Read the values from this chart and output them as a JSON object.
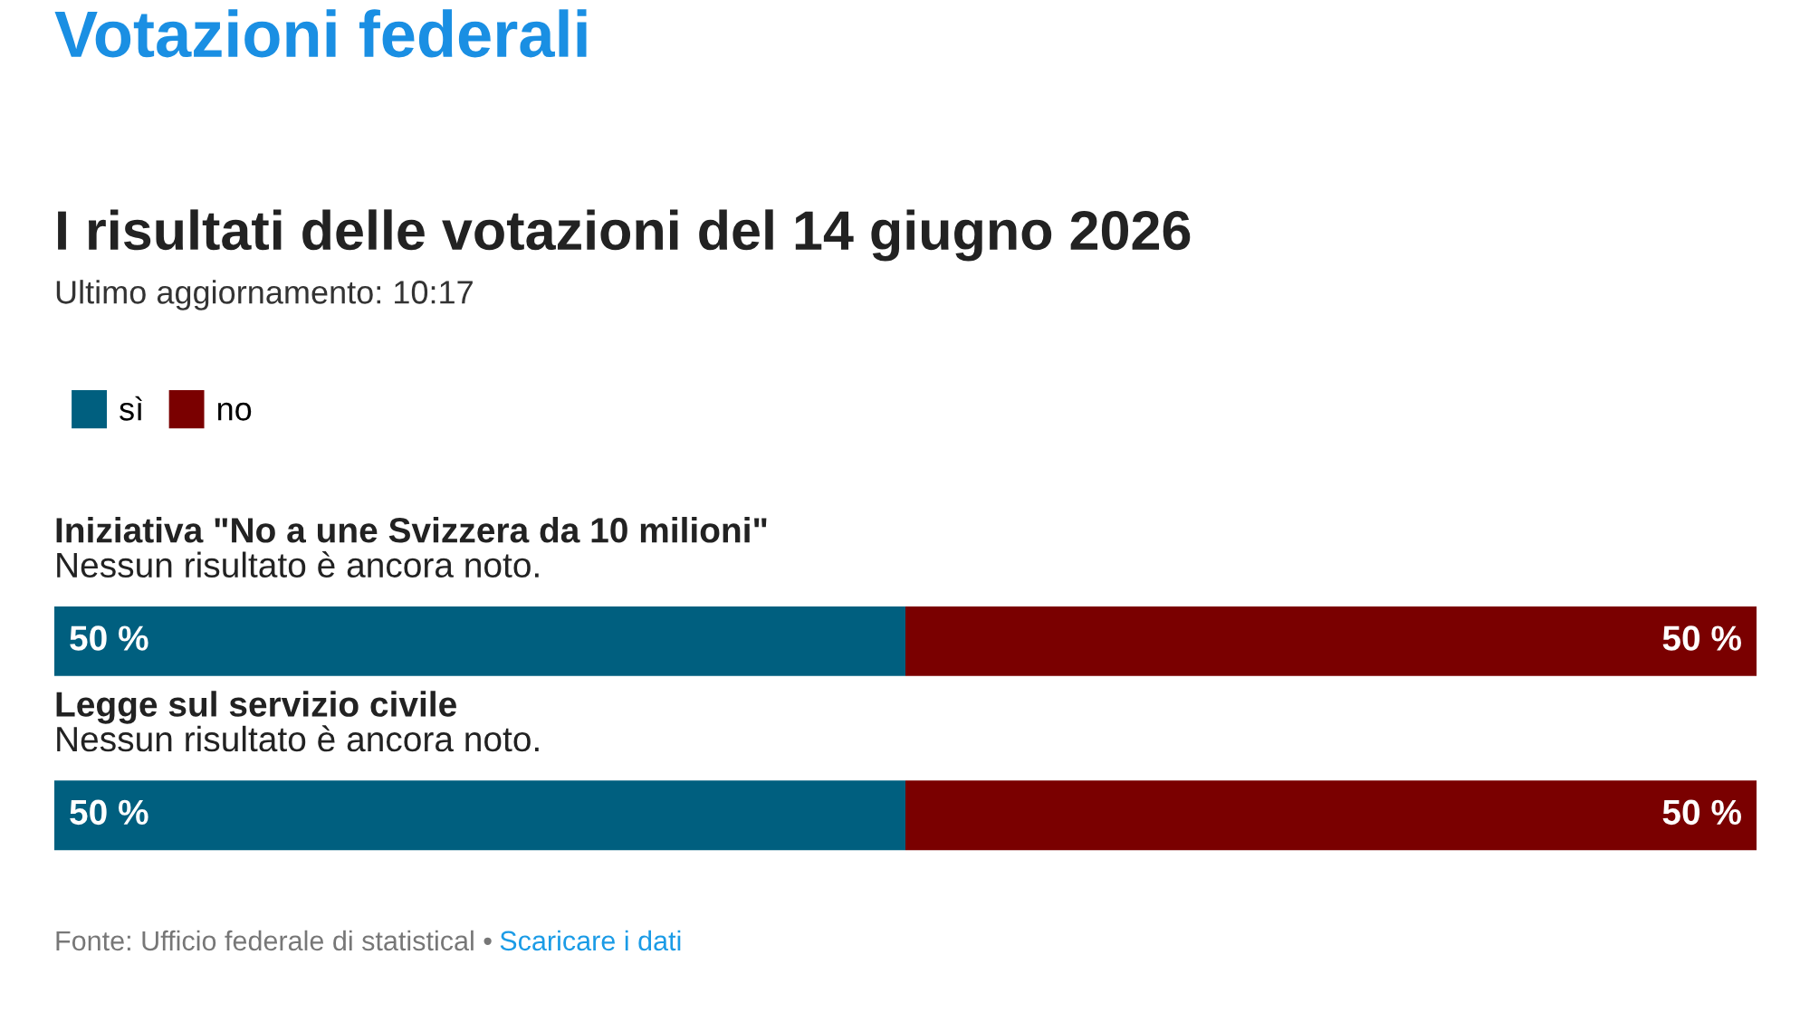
{
  "chart_data": {
    "type": "bar",
    "orientation": "horizontal",
    "stacked": true,
    "title": "I risultati delle votazioni del 14 giugno 2026",
    "subtitle": "Ultimo aggiornamento: 10:17",
    "categories": [
      "Iniziativa \"No a une Svizzera da 10 milioni\"",
      "Legge sul servizio civile"
    ],
    "series": [
      {
        "name": "sì",
        "color": "#005f7f",
        "values": [
          50,
          50
        ],
        "value_labels": [
          "50 %",
          "50 %"
        ]
      },
      {
        "name": "no",
        "color": "#7a0000",
        "values": [
          50,
          50
        ],
        "value_labels": [
          "50 %",
          "50 %"
        ]
      }
    ],
    "xlim": [
      0,
      100
    ],
    "legend": "top left",
    "annotations": [
      "Votazioni federali",
      "Nessun risultato è ancora noto.",
      "Nessun risultato è ancora noto.",
      "Fonte: Ufficio federale di statistical •",
      "Scaricare i dati"
    ]
  }
}
